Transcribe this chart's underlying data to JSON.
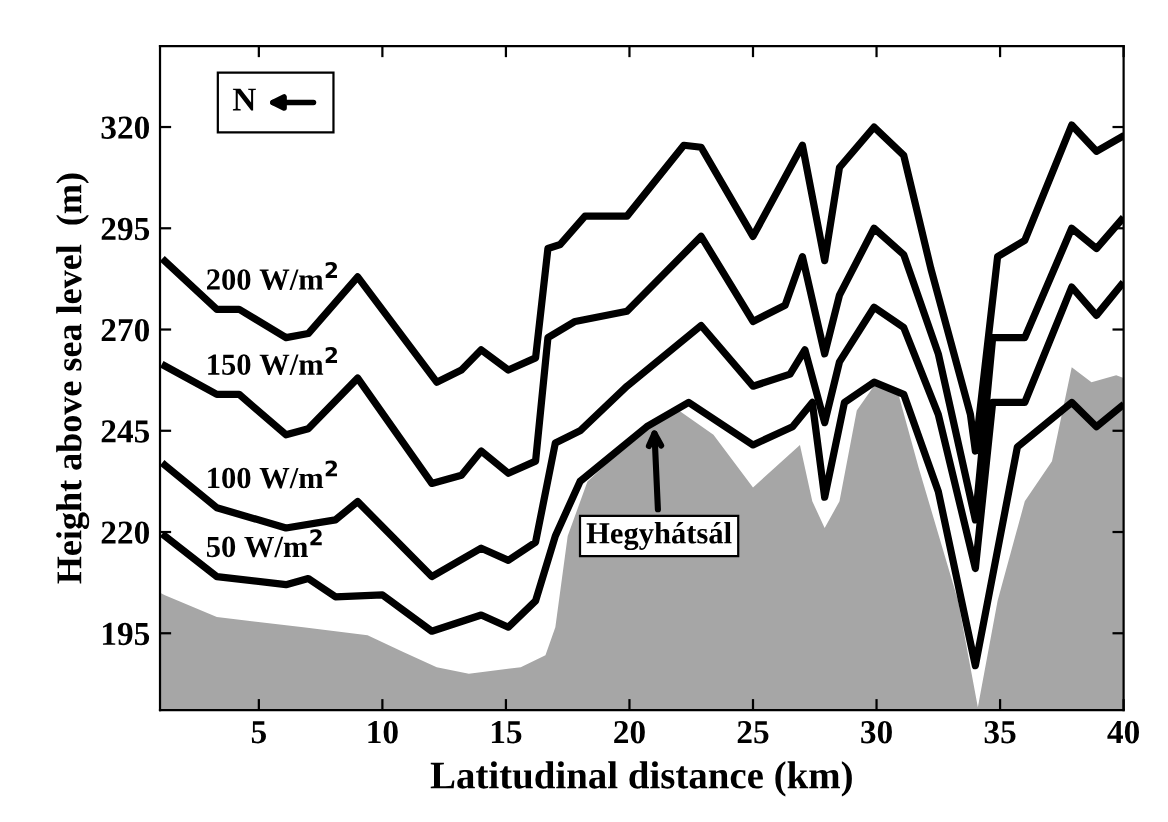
{
  "chart_data": {
    "type": "line",
    "xlabel": "Latitudinal distance (km)",
    "ylabel": "Height above sea level  (m)",
    "xlim": [
      1,
      40
    ],
    "ylim": [
      176,
      340
    ],
    "xticks": [
      5,
      10,
      15,
      20,
      25,
      30,
      35,
      40
    ],
    "yticks": [
      195,
      220,
      245,
      270,
      295,
      320
    ],
    "grid": false,
    "legend": false,
    "marker": "none",
    "line_style": "solid",
    "series": [
      {
        "type": "area",
        "color": "#a6a6a6",
        "x": [
          1,
          1.2,
          3.3,
          6.8,
          9.4,
          10.8,
          12.2,
          13.5,
          15.6,
          16.6,
          17,
          17.5,
          18.3,
          20.7,
          22,
          23.4,
          25,
          26.9,
          27.4,
          27.9,
          28.5,
          29.2,
          30,
          30.9,
          31.7,
          33.3,
          34.1,
          34.9,
          36,
          37.1,
          37.9,
          38.7,
          39.7,
          40
        ],
        "values": [
          205,
          204.4,
          199,
          196.5,
          194.5,
          190.5,
          186.6,
          185,
          186.6,
          189.6,
          196.5,
          219,
          232.5,
          246,
          250,
          244,
          231,
          241.5,
          227.6,
          221,
          227.6,
          250,
          257,
          253.7,
          236,
          203,
          176.7,
          203,
          227.6,
          237.5,
          260.7,
          257,
          258.7,
          258
        ]
      },
      {
        "name": "50 W/m$^{2}$",
        "color": "#000000",
        "x": [
          1.2,
          3.3,
          6.1,
          7,
          8.1,
          10,
          12,
          14,
          15.1,
          16.2,
          17,
          18,
          20.7,
          22.4,
          25,
          26.6,
          27.4,
          27.9,
          28.7,
          29.9,
          31.1,
          32.5,
          34,
          35.7,
          37.9,
          38.9,
          39.9
        ],
        "values": [
          219,
          209,
          207,
          208.5,
          204,
          204.5,
          195.5,
          199.5,
          196.5,
          203,
          219,
          232.5,
          246,
          252,
          241.5,
          246,
          252,
          228.6,
          252,
          257,
          254,
          230,
          187,
          241,
          252,
          246,
          251
        ]
      },
      {
        "name": "100 W/m$^{2}$",
        "color": "#000000",
        "x": [
          1.2,
          3.3,
          6.1,
          8.1,
          9,
          12,
          14,
          15.1,
          16.2,
          17,
          18,
          19.9,
          22.9,
          25,
          26.5,
          27.1,
          27.9,
          28.5,
          29.9,
          31.1,
          32.5,
          34,
          34.7,
          36,
          37.9,
          38.9,
          39.9
        ],
        "values": [
          236.5,
          226,
          221,
          223,
          227.5,
          209,
          216,
          213,
          217.5,
          242,
          245,
          256,
          271,
          256,
          259,
          265,
          247,
          262,
          275.5,
          270.5,
          249,
          211,
          252,
          252,
          280.5,
          273.5,
          281
        ]
      },
      {
        "name": "150 W/m$^{2}$",
        "color": "#000000",
        "x": [
          1.2,
          3.3,
          4.2,
          6.1,
          7,
          9,
          12,
          13.2,
          14,
          15.1,
          16.2,
          16.7,
          17.8,
          19.9,
          22.9,
          25,
          26.3,
          27,
          27.9,
          28.5,
          29.9,
          31.1,
          32.5,
          34,
          34.7,
          36,
          37.9,
          38.9,
          39.9
        ],
        "values": [
          261,
          254,
          254,
          244,
          245.5,
          258,
          232,
          234,
          240,
          234.5,
          237.5,
          268,
          272,
          274.5,
          293,
          272,
          276,
          288,
          264,
          278.5,
          295,
          288.5,
          264,
          223,
          268,
          268,
          295,
          290,
          297
        ]
      },
      {
        "name": "200 W/m$^{2}$",
        "color": "#000000",
        "x": [
          1.2,
          3.3,
          4.2,
          6.1,
          7,
          9,
          12.2,
          13.2,
          14,
          15.1,
          16.2,
          16.7,
          17.2,
          18.2,
          19.9,
          22.2,
          22.9,
          25,
          27,
          27.9,
          28.5,
          29.9,
          31.1,
          32.2,
          33.8,
          34,
          34.9,
          36,
          37.9,
          38.9,
          39.9
        ],
        "values": [
          286.9,
          275,
          275,
          268,
          269,
          283,
          257,
          260,
          265,
          260,
          263,
          290,
          291,
          298,
          298,
          315.5,
          315,
          293,
          315.5,
          287,
          310,
          320,
          313,
          285,
          249,
          240,
          288,
          292,
          320.5,
          314,
          317.5
        ]
      }
    ],
    "annotations": [
      "N",
      {
        "text": "Hegyhátsál",
        "x": 21,
        "y": 246
      }
    ]
  }
}
